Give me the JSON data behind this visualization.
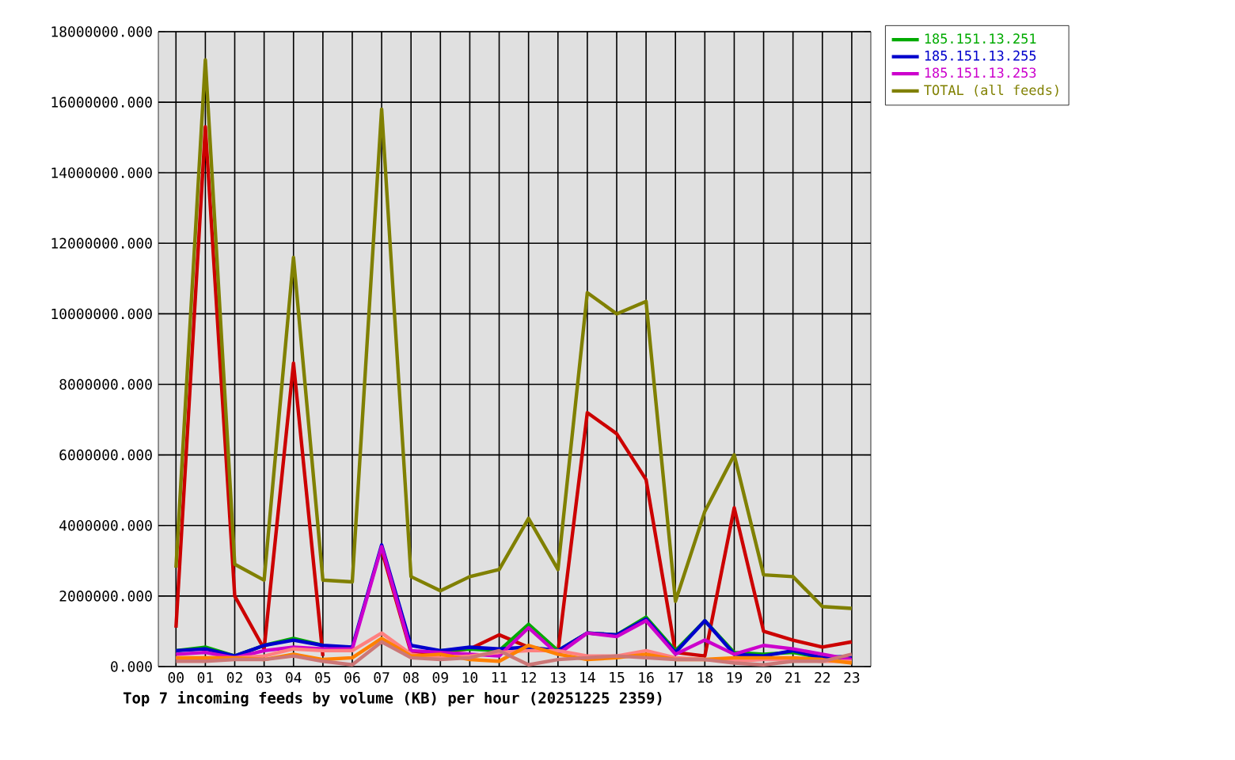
{
  "chart_data": {
    "type": "line",
    "title": "Top 7 incoming feeds by volume (KB) per hour (20251225 2359)",
    "categories": [
      "00",
      "01",
      "02",
      "03",
      "04",
      "05",
      "06",
      "07",
      "08",
      "09",
      "10",
      "11",
      "12",
      "13",
      "14",
      "15",
      "16",
      "17",
      "18",
      "19",
      "20",
      "21",
      "22",
      "23"
    ],
    "ylim": [
      0,
      18000000
    ],
    "yticks": [
      {
        "value": 0,
        "label": "0.000"
      },
      {
        "value": 2000000,
        "label": "2000000.000"
      },
      {
        "value": 4000000,
        "label": "4000000.000"
      },
      {
        "value": 6000000,
        "label": "6000000.000"
      },
      {
        "value": 8000000,
        "label": "8000000.000"
      },
      {
        "value": 10000000,
        "label": "10000000.000"
      },
      {
        "value": 12000000,
        "label": "12000000.000"
      },
      {
        "value": 14000000,
        "label": "14000000.000"
      },
      {
        "value": 16000000,
        "label": "16000000.000"
      },
      {
        "value": 18000000,
        "label": "18000000.000"
      }
    ],
    "grid": true,
    "legend": "top right",
    "series": [
      {
        "color": "#cc0000",
        "values": [
          1100000,
          15300000,
          2000000,
          500000,
          8600000,
          300000,
          null,
          3300000,
          400000,
          400000,
          500000,
          900000,
          550000,
          400000,
          7200000,
          6600000,
          5300000,
          400000,
          300000,
          4500000,
          1000000,
          750000,
          550000,
          700000
        ]
      },
      {
        "name": "185.151.13.251",
        "color": "#00aa00",
        "values": [
          450000,
          550000,
          300000,
          600000,
          800000,
          600000,
          null,
          null,
          null,
          450000,
          500000,
          450000,
          1200000,
          450000,
          950000,
          900000,
          1400000,
          450000,
          1300000,
          400000,
          350000,
          400000,
          250000,
          150000
        ]
      },
      {
        "name": "185.151.13.255",
        "color": "#0000cc",
        "values": [
          450000,
          500000,
          300000,
          600000,
          750000,
          600000,
          550000,
          3450000,
          600000,
          450000,
          550000,
          500000,
          550000,
          450000,
          950000,
          900000,
          1350000,
          400000,
          1300000,
          350000,
          300000,
          450000,
          250000,
          300000
        ]
      },
      {
        "name": "185.151.13.253",
        "color": "#cc00cc",
        "values": [
          350000,
          400000,
          250000,
          450000,
          550000,
          500000,
          500000,
          3400000,
          450000,
          400000,
          350000,
          300000,
          1100000,
          350000,
          950000,
          850000,
          1300000,
          350000,
          750000,
          350000,
          600000,
          500000,
          350000,
          200000
        ]
      },
      {
        "color": "#ff8080",
        "values": [
          250000,
          250000,
          250000,
          300000,
          500000,
          450000,
          450000,
          950000,
          350000,
          250000,
          300000,
          400000,
          450000,
          450000,
          300000,
          300000,
          450000,
          250000,
          200000,
          150000,
          200000,
          200000,
          150000,
          150000
        ]
      },
      {
        "color": "#ff8000",
        "values": [
          250000,
          250000,
          250000,
          200000,
          350000,
          200000,
          250000,
          800000,
          300000,
          350000,
          200000,
          150000,
          600000,
          350000,
          200000,
          250000,
          350000,
          200000,
          200000,
          250000,
          250000,
          250000,
          200000,
          100000
        ]
      },
      {
        "color": "#cc7777",
        "values": [
          150000,
          150000,
          200000,
          200000,
          300000,
          150000,
          50000,
          700000,
          250000,
          200000,
          250000,
          450000,
          50000,
          200000,
          250000,
          300000,
          250000,
          200000,
          200000,
          100000,
          50000,
          150000,
          150000,
          350000
        ]
      },
      {
        "name": "TOTAL (all feeds)",
        "color": "#808000",
        "values": [
          2800000,
          17200000,
          2900000,
          2450000,
          11600000,
          2450000,
          2400000,
          15800000,
          2550000,
          2150000,
          2550000,
          2750000,
          4200000,
          2750000,
          10600000,
          10000000,
          10350000,
          1850000,
          4400000,
          6000000,
          2600000,
          2550000,
          1700000,
          1650000
        ]
      }
    ]
  }
}
